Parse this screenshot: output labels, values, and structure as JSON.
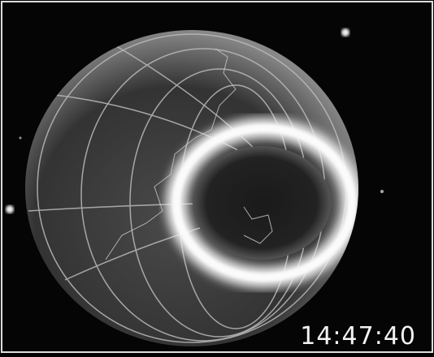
{
  "timestamp": "14:47:40"
}
